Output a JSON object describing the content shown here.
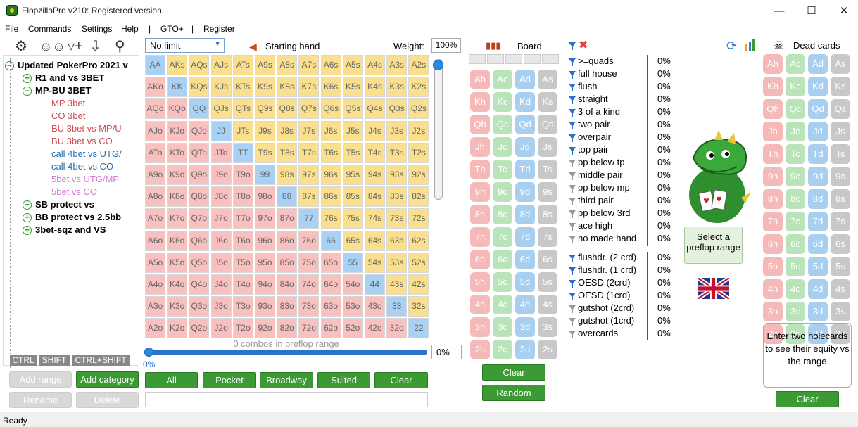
{
  "window": {
    "title": "FlopzillaPro v210: Registered version"
  },
  "menu": {
    "items": [
      "File",
      "Commands",
      "Settings",
      "Help",
      "|",
      "GTO+",
      "|",
      "Register"
    ]
  },
  "tree": {
    "nodes": [
      {
        "label": "Updated PokerPro 2021 v",
        "level": 0,
        "bold": true,
        "toggle": "minus",
        "color": "#000000"
      },
      {
        "label": "R1 and vs 3BET",
        "level": 1,
        "bold": true,
        "toggle": "plus",
        "color": "#000000"
      },
      {
        "label": "MP-BU 3BET",
        "level": 1,
        "bold": true,
        "toggle": "minus",
        "color": "#000000"
      },
      {
        "label": "MP 3bet",
        "level": 2,
        "bold": false,
        "color": "#d24a4a"
      },
      {
        "label": "CO 3bet",
        "level": 2,
        "bold": false,
        "color": "#d24a4a"
      },
      {
        "label": "BU 3bet vs MP/U",
        "level": 2,
        "bold": false,
        "color": "#d24a4a"
      },
      {
        "label": "BU 3bet vs CO",
        "level": 2,
        "bold": false,
        "color": "#d24a4a"
      },
      {
        "label": "call 4bet vs UTG/",
        "level": 2,
        "bold": false,
        "color": "#2a6fae"
      },
      {
        "label": "call 4bet vs CO",
        "level": 2,
        "bold": false,
        "color": "#2a6fae"
      },
      {
        "label": "5bet vs UTG/MP",
        "level": 2,
        "bold": false,
        "color": "#d67ad6"
      },
      {
        "label": "5bet vs CO",
        "level": 2,
        "bold": false,
        "color": "#d67ad6"
      },
      {
        "label": "SB protect vs",
        "level": 1,
        "bold": true,
        "toggle": "plus",
        "color": "#000000"
      },
      {
        "label": "BB protect vs 2.5bb",
        "level": 1,
        "bold": true,
        "toggle": "plus",
        "color": "#000000"
      },
      {
        "label": "3bet-sqz and VS",
        "level": 1,
        "bold": true,
        "toggle": "plus",
        "color": "#000000"
      }
    ]
  },
  "modkeys": {
    "ctrl": "CTRL",
    "shift": "SHIFT",
    "ctrlshift": "CTRL+SHIFT"
  },
  "left_buttons": {
    "add_range": "Add range",
    "add_category": "Add category",
    "rename": "Rename",
    "delete": "Delete"
  },
  "range": {
    "select_value": "No limit",
    "starting_hand_label": "Starting hand",
    "weight_label": "Weight:",
    "weight_value": "100%",
    "combos_text": "0 combos in preflop range",
    "percent_box": "0%",
    "slider_pct": "0%",
    "ranks": [
      "A",
      "K",
      "Q",
      "J",
      "T",
      "9",
      "8",
      "7",
      "6",
      "5",
      "4",
      "3",
      "2"
    ]
  },
  "range_buttons": {
    "all": "All",
    "pocket": "Pocket",
    "broadway": "Broadway",
    "suited": "Suited",
    "clear": "Clear"
  },
  "board": {
    "label": "Board",
    "clear": "Clear",
    "random": "Random",
    "ranks": [
      "A",
      "K",
      "Q",
      "J",
      "T",
      "9",
      "8",
      "7",
      "6",
      "5",
      "4",
      "3",
      "2"
    ],
    "suits": [
      "h",
      "c",
      "d",
      "s"
    ]
  },
  "stats": {
    "made": [
      {
        "name": ">=quads",
        "pct": "0%",
        "active": true
      },
      {
        "name": "full house",
        "pct": "0%",
        "active": true
      },
      {
        "name": "flush",
        "pct": "0%",
        "active": true
      },
      {
        "name": "straight",
        "pct": "0%",
        "active": true
      },
      {
        "name": "3 of a kind",
        "pct": "0%",
        "active": true
      },
      {
        "name": "two pair",
        "pct": "0%",
        "active": true
      },
      {
        "name": "overpair",
        "pct": "0%",
        "active": true
      },
      {
        "name": "top pair",
        "pct": "0%",
        "active": true
      },
      {
        "name": "pp below tp",
        "pct": "0%",
        "active": false
      },
      {
        "name": "middle pair",
        "pct": "0%",
        "active": false
      },
      {
        "name": "pp below mp",
        "pct": "0%",
        "active": false
      },
      {
        "name": "third pair",
        "pct": "0%",
        "active": false
      },
      {
        "name": "pp below 3rd",
        "pct": "0%",
        "active": false
      },
      {
        "name": "ace high",
        "pct": "0%",
        "active": false
      },
      {
        "name": "no made hand",
        "pct": "0%",
        "active": false
      }
    ],
    "draws": [
      {
        "name": "flushdr. (2 crd)",
        "pct": "0%",
        "active": true
      },
      {
        "name": "flushdr. (1 crd)",
        "pct": "0%",
        "active": true
      },
      {
        "name": "OESD (2crd)",
        "pct": "0%",
        "active": true
      },
      {
        "name": "OESD (1crd)",
        "pct": "0%",
        "active": true
      },
      {
        "name": "gutshot (2crd)",
        "pct": "0%",
        "active": false
      },
      {
        "name": "gutshot (1crd)",
        "pct": "0%",
        "active": false
      },
      {
        "name": "overcards",
        "pct": "0%",
        "active": false
      }
    ]
  },
  "center": {
    "select_range": "Select a preflop range"
  },
  "dead": {
    "label": "Dead cards",
    "equity_text": "Enter two holecards to see their equity vs the range",
    "clear": "Clear"
  },
  "status": {
    "text": "Ready"
  }
}
